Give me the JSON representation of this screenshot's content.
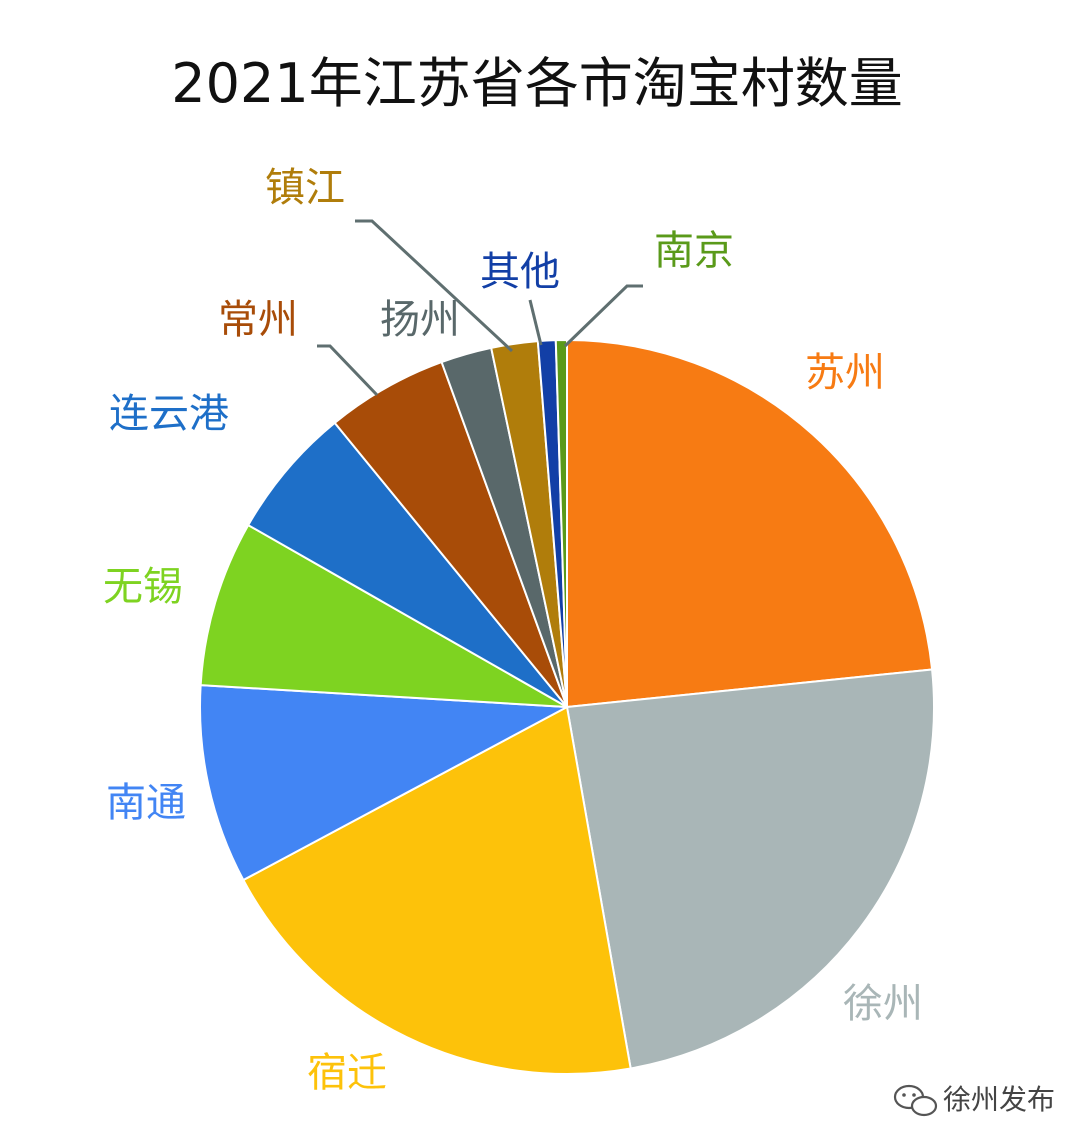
{
  "chart_data": {
    "type": "pie",
    "title": "2021年江苏省各市淘宝村数量",
    "start_angle_deg": 0,
    "direction": "clockwise",
    "slices": [
      {
        "label": "苏州",
        "value": 24.0,
        "color": "#f77b13",
        "label_color": "#f77b13"
      },
      {
        "label": "徐州",
        "value": 24.5,
        "color": "#a9b6b7",
        "label_color": "#a9b6b7"
      },
      {
        "label": "宿迁",
        "value": 20.5,
        "color": "#fdc20a",
        "label_color": "#fdc20a"
      },
      {
        "label": "南通",
        "value": 9.0,
        "color": "#4285f4",
        "label_color": "#4285f4"
      },
      {
        "label": "无锡",
        "value": 7.5,
        "color": "#7ed321",
        "label_color": "#7ed321"
      },
      {
        "label": "连云港",
        "value": 6.0,
        "color": "#1e6fc8",
        "label_color": "#1e6fc8"
      },
      {
        "label": "常州",
        "value": 5.5,
        "color": "#a84c08",
        "label_color": "#a84c08"
      },
      {
        "label": "扬州",
        "value": 2.3,
        "color": "#59686a",
        "label_color": "#59686a"
      },
      {
        "label": "镇江",
        "value": 2.1,
        "color": "#b07d0b",
        "label_color": "#b07d0b"
      },
      {
        "label": "其他",
        "value": 0.8,
        "color": "#123fa6",
        "label_color": "#123fa6"
      },
      {
        "label": "南京",
        "value": 0.5,
        "color": "#5a9a1a",
        "label_color": "#5a9a1a"
      }
    ]
  },
  "watermark": {
    "text": "徐州发布",
    "icon": "wechat-icon"
  }
}
